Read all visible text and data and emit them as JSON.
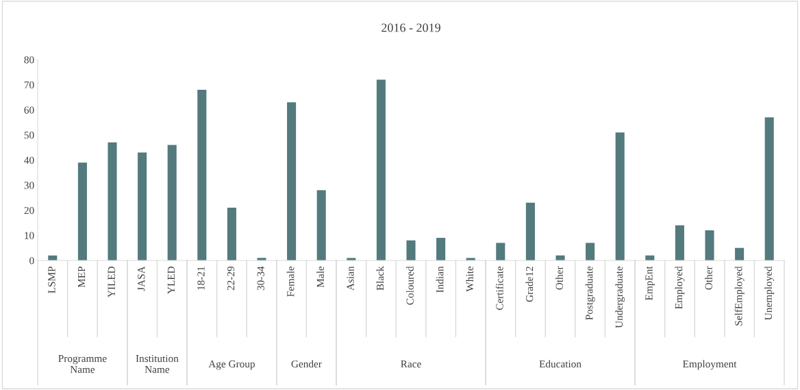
{
  "chart_data": [
    {
      "type": "bar",
      "xlabel": "Programme Name",
      "categories": [
        "LSMP",
        "MEP",
        "YILED"
      ],
      "values": [
        2,
        39,
        47
      ],
      "color": "#537a7d",
      "ylim": [
        0,
        80
      ],
      "yticks": [
        0,
        10,
        20,
        30,
        40,
        50,
        60,
        70,
        80
      ]
    },
    {
      "type": "bar",
      "xlabel": "Institution Name",
      "categories": [
        "JASA",
        "YLED"
      ],
      "values": [
        43,
        46
      ],
      "color": "#537a7d",
      "ylim": [
        0,
        80
      ],
      "tick_labels": "x"
    },
    {
      "type": "bar",
      "xlabel": "Age Group",
      "categories": [
        "18-21",
        "22-29",
        "30-34"
      ],
      "values": [
        68,
        21,
        1
      ],
      "color": "#537a7d",
      "ylim": [
        0,
        80
      ],
      "tick_labels": "x"
    },
    {
      "type": "bar",
      "xlabel": "Gender",
      "categories": [
        "Female",
        "Male"
      ],
      "values": [
        63,
        28
      ],
      "color": "#537a7d",
      "ylim": [
        0,
        80
      ],
      "tick_labels": "x"
    },
    {
      "type": "bar",
      "title": "2016 - 2019",
      "xlabel": "Race",
      "categories": [
        "Asian",
        "Black",
        "Coloured",
        "Indian",
        "White"
      ],
      "values": [
        1,
        72,
        8,
        9,
        1
      ],
      "color": "#537a7d",
      "ylim": [
        0,
        80
      ],
      "tick_labels": "x"
    },
    {
      "type": "bar",
      "xlabel": "Education",
      "categories": [
        "Certificate",
        "Grade12",
        "Other",
        "Postgraduate",
        "Undergraduate"
      ],
      "values": [
        7,
        23,
        2,
        7,
        51
      ],
      "color": "#537a7d",
      "ylim": [
        0,
        80
      ],
      "tick_labels": "x"
    },
    {
      "type": "bar",
      "xlabel": "Employment",
      "categories": [
        "EmpEnt",
        "Employed",
        "Other",
        "SelfEmployed",
        "Unemployed"
      ],
      "values": [
        2,
        14,
        12,
        5,
        57
      ],
      "color": "#537a7d",
      "ylim": [
        0,
        80
      ],
      "tick_labels": "x"
    }
  ]
}
